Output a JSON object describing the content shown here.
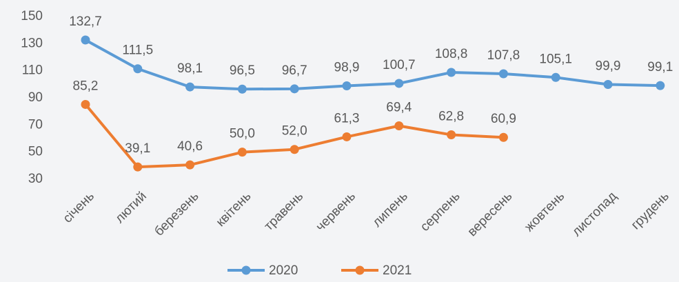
{
  "chart_data": {
    "type": "line",
    "categories": [
      "січень",
      "лютий",
      "березень",
      "квітень",
      "травень",
      "червень",
      "липень",
      "серпень",
      "вересень",
      "жовтень",
      "листопад",
      "грудень"
    ],
    "series": [
      {
        "name": "2020",
        "color": "#5b9bd5",
        "values": [
          132.7,
          111.5,
          98.1,
          96.5,
          96.7,
          98.9,
          100.7,
          108.8,
          107.8,
          105.1,
          99.9,
          99.1
        ],
        "value_labels": [
          "132,7",
          "111,5",
          "98,1",
          "96,5",
          "96,7",
          "98,9",
          "100,7",
          "108,8",
          "107,8",
          "105,1",
          "99,9",
          "99,1"
        ]
      },
      {
        "name": "2021",
        "color": "#ed7d31",
        "values": [
          85.2,
          39.1,
          40.6,
          50.0,
          52.0,
          61.3,
          69.4,
          62.8,
          60.9,
          null,
          null,
          null
        ],
        "value_labels": [
          "85,2",
          "39,1",
          "40,6",
          "50,0",
          "52,0",
          "61,3",
          "69,4",
          "62,8",
          "60,9",
          null,
          null,
          null
        ]
      }
    ],
    "ylim": [
      30,
      150
    ],
    "yticks": [
      30,
      50,
      70,
      90,
      110,
      130,
      150
    ],
    "grid": false,
    "legend": "bottom"
  }
}
